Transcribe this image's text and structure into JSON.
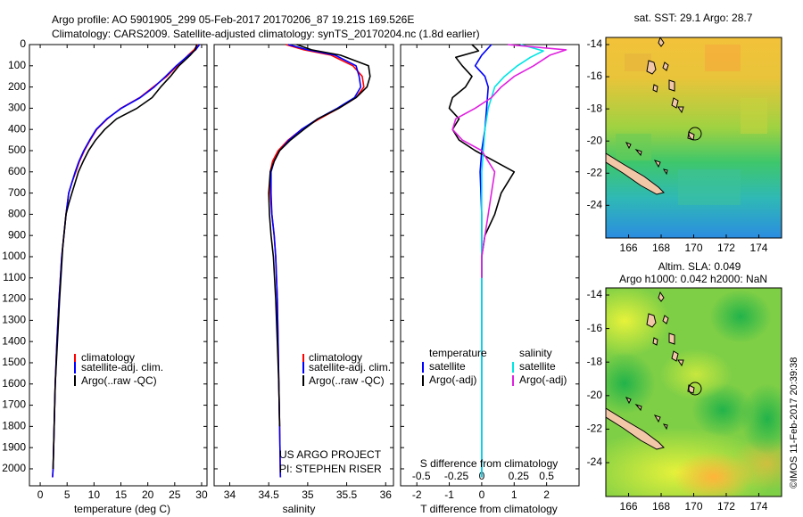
{
  "header": {
    "line1": "Argo profile: AO 5901905_299 05-Feb-2017 20170206_87 19.21S 169.526E",
    "line2": "Climatology: CARS2009. Satellite-adjusted climatology: synTS_20170204.nc (1.8d earlier)"
  },
  "colors": {
    "climatology": "#ff0000",
    "satellite": "#0000ff",
    "argo": "#000000",
    "s_sat": "#00e5e5",
    "s_argo": "#e020e0"
  },
  "depth_ticks": [
    0,
    100,
    200,
    300,
    400,
    500,
    600,
    700,
    800,
    900,
    1000,
    1100,
    1200,
    1300,
    1400,
    1500,
    1600,
    1700,
    1800,
    1900,
    2000
  ],
  "chart_data": [
    {
      "type": "line",
      "xlabel": "temperature (deg C)",
      "xlim": [
        -2,
        31
      ],
      "ylim": [
        2080,
        0
      ],
      "xticks": [
        0,
        5,
        10,
        15,
        20,
        25,
        30
      ],
      "legend": [
        "climatology",
        "satellite-adj. clim.",
        "Argo(..raw -QC)"
      ],
      "legend_placement": "bottom-center",
      "series": [
        {
          "name": "climatology",
          "x": [
            29.3,
            28.6,
            27.5,
            25.5,
            23.5,
            21.0,
            18.5,
            15.0,
            12.5,
            10.5,
            9.3,
            8.2,
            7.3,
            6.6,
            5.9,
            5.3,
            4.8,
            4.0,
            3.5,
            3.1,
            2.8,
            2.6,
            2.5,
            2.4,
            2.3
          ],
          "y": [
            0,
            25,
            50,
            100,
            150,
            200,
            250,
            300,
            350,
            400,
            450,
            500,
            550,
            600,
            650,
            700,
            800,
            1000,
            1200,
            1400,
            1600,
            1800,
            1900,
            2000,
            2040
          ]
        },
        {
          "name": "satellite-adj. clim.",
          "x": [
            29.6,
            28.9,
            27.6,
            25.3,
            23.3,
            21.2,
            18.6,
            15.1,
            12.4,
            10.4,
            9.2,
            8.1,
            7.2,
            6.5,
            5.9,
            5.3,
            4.8,
            4.0,
            3.5,
            3.1,
            2.8,
            2.6,
            2.5,
            2.4,
            2.3
          ],
          "y": [
            0,
            25,
            50,
            100,
            150,
            200,
            250,
            300,
            350,
            400,
            450,
            500,
            550,
            600,
            650,
            700,
            800,
            1000,
            1200,
            1400,
            1600,
            1800,
            1900,
            2000,
            2040
          ]
        },
        {
          "name": "Argo(..raw -QC)",
          "x": [
            29.1,
            28.8,
            27.9,
            25.8,
            24.2,
            22.4,
            20.8,
            18.0,
            14.2,
            12.0,
            10.3,
            9.0,
            8.0,
            7.1,
            6.5,
            5.9,
            5.3,
            4.8,
            4.2,
            3.6,
            3.2,
            2.8,
            2.6,
            2.5,
            2.4
          ],
          "y": [
            0,
            25,
            50,
            100,
            150,
            200,
            250,
            300,
            350,
            400,
            450,
            500,
            550,
            600,
            650,
            700,
            750,
            800,
            950,
            1200,
            1400,
            1600,
            1800,
            1900,
            2000
          ]
        }
      ]
    },
    {
      "type": "line",
      "xlabel": "salinity",
      "xlim": [
        33.8,
        36.1
      ],
      "ylim": [
        2080,
        0
      ],
      "xticks": [
        34,
        34.5,
        35,
        35.5,
        36
      ],
      "legend": [
        "climatology",
        "satellite-adj. clim.",
        "Argo(..raw -QC)"
      ],
      "legend_placement": "bottom-right",
      "annotation": [
        "US ARGO PROJECT",
        "PI: STEPHEN RISER"
      ],
      "series": [
        {
          "name": "climatology",
          "x": [
            34.72,
            34.95,
            35.3,
            35.58,
            35.7,
            35.72,
            35.62,
            35.4,
            35.15,
            34.92,
            34.75,
            34.62,
            34.55,
            34.52,
            34.52,
            34.54,
            34.57,
            34.59,
            34.61,
            34.62,
            34.63,
            34.64,
            34.65
          ],
          "y": [
            0,
            25,
            50,
            100,
            150,
            200,
            250,
            300,
            350,
            400,
            450,
            500,
            550,
            600,
            700,
            800,
            900,
            1000,
            1200,
            1400,
            1600,
            1800,
            2040
          ]
        },
        {
          "name": "satellite-adj. clim.",
          "x": [
            34.75,
            35.0,
            35.35,
            35.62,
            35.66,
            35.68,
            35.6,
            35.38,
            35.13,
            34.92,
            34.76,
            34.64,
            34.57,
            34.53,
            34.53,
            34.54,
            34.57,
            34.59,
            34.61,
            34.62,
            34.63,
            34.64,
            34.65
          ],
          "y": [
            0,
            25,
            50,
            100,
            150,
            200,
            250,
            300,
            350,
            400,
            450,
            500,
            550,
            600,
            700,
            800,
            900,
            1000,
            1200,
            1400,
            1600,
            1800,
            2040
          ]
        },
        {
          "name": "Argo(..raw -QC)",
          "x": [
            34.86,
            35.05,
            35.42,
            35.78,
            35.8,
            35.76,
            35.62,
            35.4,
            35.13,
            34.95,
            34.78,
            34.64,
            34.57,
            34.52,
            34.5,
            34.51,
            34.53,
            34.56,
            34.59,
            34.61,
            34.63,
            34.64
          ],
          "y": [
            0,
            25,
            50,
            100,
            150,
            200,
            250,
            300,
            350,
            400,
            450,
            500,
            550,
            600,
            700,
            800,
            900,
            1000,
            1200,
            1400,
            1600,
            1800
          ]
        }
      ]
    },
    {
      "type": "line",
      "xlabel": "T difference from climatology",
      "xlabel_top": "S difference from climatology",
      "xlim": [
        -2.5,
        3.0
      ],
      "ylim": [
        2080,
        0
      ],
      "xticks": [
        -2,
        -1,
        0,
        1,
        2
      ],
      "xticks_salinity": [
        "-0.5",
        "-0.25",
        "0",
        "0.25",
        "0.5"
      ],
      "legend_groups": [
        "temperature",
        "salinity"
      ],
      "legend": [
        "satellite",
        "Argo(-adj)",
        "satellite",
        "Argo(-adj)"
      ],
      "legend_placement": "bottom",
      "series": [
        {
          "name": "satellite",
          "group": "temperature",
          "x": [
            0.3,
            0.0,
            -0.2,
            0.1,
            0.2,
            0.15,
            0.1,
            0.0,
            -0.05,
            0.0,
            0.0,
            0.0,
            0.0
          ],
          "y": [
            0,
            50,
            100,
            150,
            200,
            300,
            400,
            500,
            600,
            800,
            1000,
            1500,
            2040
          ]
        },
        {
          "name": "Argo(-adj)",
          "group": "temperature",
          "x": [
            -0.3,
            -0.1,
            -0.8,
            -0.6,
            -0.3,
            -0.5,
            -0.9,
            -1.0,
            -0.7,
            -0.9,
            -0.7,
            -0.2,
            0.4,
            1.0,
            0.6,
            0.4,
            0.1,
            0.0,
            0.0
          ],
          "y": [
            0,
            30,
            60,
            100,
            150,
            200,
            250,
            300,
            350,
            400,
            450,
            500,
            550,
            600,
            700,
            800,
            900,
            1000,
            1100
          ]
        },
        {
          "name": "satellite",
          "group": "salinity",
          "x": [
            1.2,
            1.9,
            1.5,
            1.1,
            0.7,
            0.4,
            0.2,
            0.1,
            0.05,
            0.0,
            0.0,
            0.0,
            0.0
          ],
          "y": [
            0,
            30,
            60,
            100,
            150,
            200,
            300,
            400,
            500,
            600,
            800,
            1200,
            2040
          ]
        },
        {
          "name": "Argo(-adj)",
          "group": "salinity",
          "x": [
            0.8,
            2.6,
            2.1,
            1.6,
            1.0,
            0.6,
            0.3,
            -0.2,
            -0.8,
            -0.9,
            -0.6,
            0.0,
            0.2,
            0.4,
            0.3,
            0.2,
            0.1,
            0.0,
            0.0
          ],
          "y": [
            0,
            25,
            50,
            100,
            150,
            200,
            250,
            300,
            350,
            400,
            450,
            500,
            550,
            600,
            700,
            800,
            900,
            1000,
            1100
          ]
        }
      ]
    }
  ],
  "maps": [
    {
      "title": "sat. SST: 29.1  Argo: 28.7",
      "xticks": [
        "166",
        "168",
        "170",
        "172",
        "174"
      ],
      "yticks": [
        "-14",
        "-16",
        "-18",
        "-20",
        "-22",
        "-24"
      ]
    },
    {
      "title1": "Altim. SLA: 0.049",
      "title2": "Argo h1000: 0.042 h2000: NaN",
      "xticks": [
        "166",
        "168",
        "170",
        "172",
        "174"
      ],
      "yticks": [
        "-14",
        "-16",
        "-18",
        "-20",
        "-22",
        "-24"
      ]
    }
  ],
  "side_label": "©IMOS 11-Feb-2017 20:39:38"
}
